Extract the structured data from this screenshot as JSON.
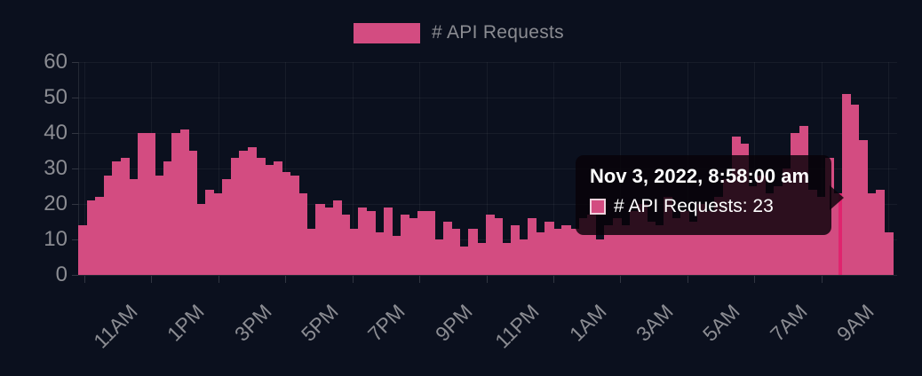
{
  "legend": {
    "label": "# API Requests"
  },
  "tooltip": {
    "title": "Nov 3, 2022, 8:58:00 am",
    "series_label": "# API Requests",
    "value": 23,
    "row_text": "# API Requests: 23"
  },
  "chart_data": {
    "type": "bar",
    "title": "",
    "xlabel": "",
    "ylabel": "",
    "series_name": "# API Requests",
    "legend_position": "top",
    "grid": true,
    "ylim": [
      0,
      60
    ],
    "y_ticks": [
      0,
      10,
      20,
      30,
      40,
      50,
      60
    ],
    "x_tick_labels": [
      "11AM",
      "1PM",
      "3PM",
      "5PM",
      "7PM",
      "9PM",
      "11PM",
      "1AM",
      "3AM",
      "5AM",
      "7AM",
      "9AM"
    ],
    "x_interval_minutes": 15,
    "values": [
      14,
      21,
      22,
      28,
      32,
      33,
      27,
      40,
      40,
      28,
      32,
      40,
      41,
      35,
      20,
      24,
      23,
      27,
      33,
      35,
      36,
      33,
      31,
      32,
      29,
      28,
      23,
      13,
      20,
      19,
      21,
      17,
      13,
      19,
      18,
      12,
      19,
      11,
      17,
      16,
      18,
      18,
      10,
      15,
      13,
      8,
      13,
      9,
      17,
      16,
      9,
      14,
      10,
      16,
      12,
      15,
      13,
      14,
      13,
      16,
      17,
      10,
      14,
      16,
      14,
      18,
      20,
      15,
      14,
      22,
      16,
      18,
      15,
      20,
      18,
      22,
      27,
      39,
      37,
      25,
      28,
      23,
      25,
      30,
      40,
      42,
      24,
      22,
      33,
      23,
      51,
      48,
      38,
      23,
      24,
      12
    ],
    "highlighted_index": 89,
    "highlighted_value": 23,
    "colors": {
      "background": "#0b101e",
      "bar": "#d34c81",
      "highlight": "#e0246e",
      "axis_text": "#8b8c92",
      "tooltip_text": "#ffffff"
    }
  }
}
